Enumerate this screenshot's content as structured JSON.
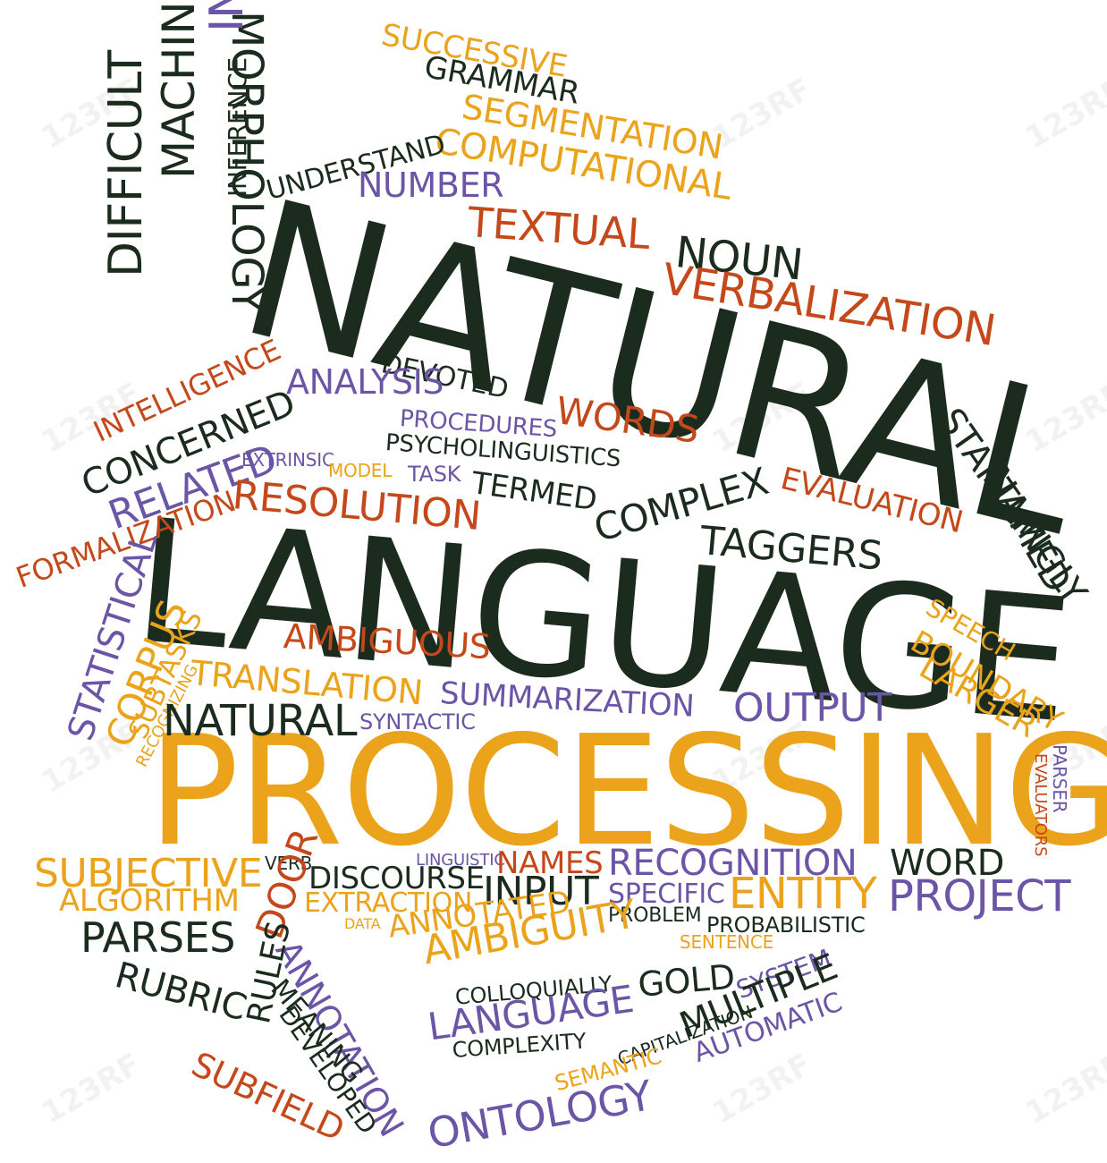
{
  "colors": {
    "dark": "#1b2c1f",
    "orange": "#eaa31a",
    "red": "#c5481a",
    "purple": "#6a55a6"
  },
  "watermark": "123RF",
  "words": [
    {
      "id": "natural-title",
      "text": "NATURAL",
      "color": "dark"
    },
    {
      "id": "language-title",
      "text": "LANGUAGE",
      "color": "dark"
    },
    {
      "id": "processing-title",
      "text": "PROCESSING",
      "color": "orange"
    },
    {
      "id": "successive",
      "text": "SUCCESSIVE",
      "color": "orange"
    },
    {
      "id": "grammar",
      "text": "GRAMMAR",
      "color": "dark"
    },
    {
      "id": "segmentation",
      "text": "SEGMENTATION",
      "color": "orange"
    },
    {
      "id": "computational",
      "text": "COMPUTATIONAL",
      "color": "orange"
    },
    {
      "id": "understand",
      "text": "UNDERSTAND",
      "color": "dark"
    },
    {
      "id": "number",
      "text": "NUMBER",
      "color": "purple"
    },
    {
      "id": "textual",
      "text": "TEXTUAL",
      "color": "red"
    },
    {
      "id": "noun",
      "text": "NOUN",
      "color": "dark"
    },
    {
      "id": "verbalization",
      "text": "VERBALIZATION",
      "color": "red"
    },
    {
      "id": "morphology",
      "text": "MORPHOLOGY",
      "color": "dark"
    },
    {
      "id": "information",
      "text": "INFORMATION",
      "color": "purple"
    },
    {
      "id": "inference",
      "text": "INFERENCE",
      "color": "dark"
    },
    {
      "id": "machine",
      "text": "MACHINE",
      "color": "dark"
    },
    {
      "id": "difficult",
      "text": "DIFFICULT",
      "color": "dark"
    },
    {
      "id": "intelligence",
      "text": "INTELLIGENCE",
      "color": "red"
    },
    {
      "id": "concerned",
      "text": "CONCERNED",
      "color": "dark"
    },
    {
      "id": "related",
      "text": "RELATED",
      "color": "purple"
    },
    {
      "id": "formalization",
      "text": "FORMALIZATION",
      "color": "red"
    },
    {
      "id": "devoted",
      "text": "DEVOTED",
      "color": "dark"
    },
    {
      "id": "analysis",
      "text": "ANALYSIS",
      "color": "purple"
    },
    {
      "id": "procedures",
      "text": "PROCEDURES",
      "color": "purple"
    },
    {
      "id": "words",
      "text": "WORDS",
      "color": "red"
    },
    {
      "id": "psycholinguistics",
      "text": "PSYCHOLINGUISTICS",
      "color": "dark"
    },
    {
      "id": "extrinsic",
      "text": "EXTRINSIC",
      "color": "purple"
    },
    {
      "id": "model",
      "text": "MODEL",
      "color": "orange"
    },
    {
      "id": "task",
      "text": "TASK",
      "color": "purple"
    },
    {
      "id": "termed",
      "text": "TERMED",
      "color": "dark"
    },
    {
      "id": "resolution",
      "text": "RESOLUTION",
      "color": "red"
    },
    {
      "id": "complex",
      "text": "COMPLEX",
      "color": "dark"
    },
    {
      "id": "evaluation",
      "text": "EVALUATION",
      "color": "red"
    },
    {
      "id": "taggers",
      "text": "TAGGERS",
      "color": "dark"
    },
    {
      "id": "startlingly",
      "text": "STARTLINGLY",
      "color": "dark"
    },
    {
      "id": "named",
      "text": "NAMED",
      "color": "dark"
    },
    {
      "id": "statistical",
      "text": "STATISTICAL",
      "color": "purple"
    },
    {
      "id": "corpus",
      "text": "CORPUS",
      "color": "orange"
    },
    {
      "id": "subtasks",
      "text": "SUBTASKS",
      "color": "orange"
    },
    {
      "id": "recognizing",
      "text": "RECOGNIZING",
      "color": "orange"
    },
    {
      "id": "ambiguous",
      "text": "AMBIGUOUS",
      "color": "red"
    },
    {
      "id": "translation",
      "text": "TRANSLATION",
      "color": "orange"
    },
    {
      "id": "speech",
      "text": "SPEECH",
      "color": "orange"
    },
    {
      "id": "boundary",
      "text": "BOUNDARY",
      "color": "orange"
    },
    {
      "id": "larger",
      "text": "LARGER",
      "color": "orange"
    },
    {
      "id": "summarization",
      "text": "SUMMARIZATION",
      "color": "purple"
    },
    {
      "id": "output",
      "text": "OUTPUT",
      "color": "purple"
    },
    {
      "id": "natural-small",
      "text": "NATURAL",
      "color": "dark"
    },
    {
      "id": "syntactic",
      "text": "SYNTACTIC",
      "color": "purple"
    },
    {
      "id": "parser",
      "text": "PARSER",
      "color": "purple"
    },
    {
      "id": "evaluators",
      "text": "EVALUATORS",
      "color": "red"
    },
    {
      "id": "subjective",
      "text": "SUBJECTIVE",
      "color": "orange"
    },
    {
      "id": "verb",
      "text": "VERB",
      "color": "dark"
    },
    {
      "id": "linguistic",
      "text": "LINGUISTIC",
      "color": "purple"
    },
    {
      "id": "names",
      "text": "NAMES",
      "color": "red"
    },
    {
      "id": "recognition",
      "text": "RECOGNITION",
      "color": "purple"
    },
    {
      "id": "word",
      "text": "WORD",
      "color": "dark"
    },
    {
      "id": "algorithm",
      "text": "ALGORITHM",
      "color": "orange"
    },
    {
      "id": "discourse",
      "text": "DISCOURSE",
      "color": "dark"
    },
    {
      "id": "input",
      "text": "INPUT",
      "color": "dark"
    },
    {
      "id": "specific",
      "text": "SPECIFIC",
      "color": "purple"
    },
    {
      "id": "entity",
      "text": "ENTITY",
      "color": "orange"
    },
    {
      "id": "project",
      "text": "PROJECT",
      "color": "purple"
    },
    {
      "id": "extraction",
      "text": "EXTRACTION",
      "color": "orange"
    },
    {
      "id": "parses",
      "text": "PARSES",
      "color": "dark"
    },
    {
      "id": "door",
      "text": "DOOR",
      "color": "red"
    },
    {
      "id": "data",
      "text": "DATA",
      "color": "orange"
    },
    {
      "id": "problem",
      "text": "PROBLEM",
      "color": "dark"
    },
    {
      "id": "probabilistic",
      "text": "PROBABILISTIC",
      "color": "dark"
    },
    {
      "id": "annotated",
      "text": "ANNOTATED",
      "color": "orange"
    },
    {
      "id": "annotation",
      "text": "ANNOTATION",
      "color": "purple"
    },
    {
      "id": "sentence",
      "text": "SENTENCE",
      "color": "orange"
    },
    {
      "id": "ambiguity",
      "text": "AMBIGUITY",
      "color": "orange"
    },
    {
      "id": "rubric",
      "text": "RUBRIC",
      "color": "dark"
    },
    {
      "id": "rules",
      "text": "RULES",
      "color": "dark"
    },
    {
      "id": "meaning",
      "text": "MEANING",
      "color": "dark"
    },
    {
      "id": "gold",
      "text": "GOLD",
      "color": "dark"
    },
    {
      "id": "colloquially",
      "text": "COLLOQUIALLY",
      "color": "dark"
    },
    {
      "id": "system",
      "text": "SYSTEM",
      "color": "purple"
    },
    {
      "id": "multiple",
      "text": "MULTIPLE",
      "color": "dark"
    },
    {
      "id": "language-small",
      "text": "LANGUAGE",
      "color": "purple"
    },
    {
      "id": "capitalization",
      "text": "CAPITALIZATION",
      "color": "dark"
    },
    {
      "id": "developed",
      "text": "DEVELOPED",
      "color": "dark"
    },
    {
      "id": "complexity",
      "text": "COMPLEXITY",
      "color": "dark"
    },
    {
      "id": "automatic",
      "text": "AUTOMATIC",
      "color": "purple"
    },
    {
      "id": "subfield",
      "text": "SUBFIELD",
      "color": "red"
    },
    {
      "id": "semantic",
      "text": "SEMANTIC",
      "color": "orange"
    },
    {
      "id": "ontology",
      "text": "ONTOLOGY",
      "color": "purple"
    }
  ]
}
